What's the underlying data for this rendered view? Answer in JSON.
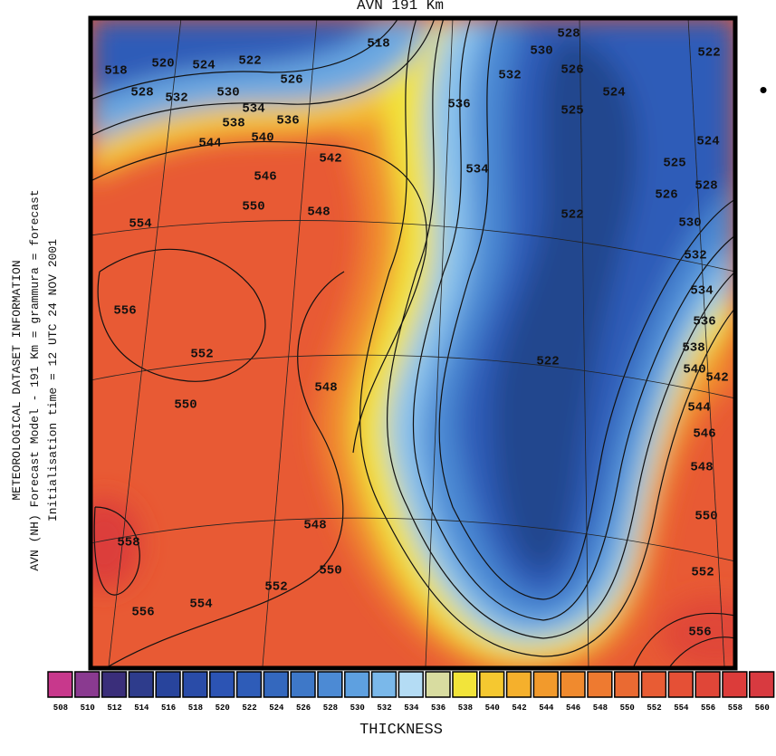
{
  "title": "AVN 191 Km",
  "side_info": [
    "METEOROLOGICAL DATASET INFORMATION",
    "AVN (NH) Forecast Model - 191 Km = grammura = forecast",
    "Initialisation time = 12 UTC 24 NOV 2001"
  ],
  "bullet": "•",
  "contour_labels": [
    518,
    520,
    524,
    522,
    518,
    526,
    528,
    532,
    530,
    534,
    536,
    538,
    540,
    544,
    542,
    546,
    550,
    548,
    554,
    556,
    552,
    550,
    548,
    548,
    558,
    550,
    552,
    554,
    556,
    536,
    530,
    528,
    532,
    526,
    524,
    525,
    534,
    522,
    522,
    522,
    524,
    525,
    526,
    528,
    530,
    532,
    534,
    536,
    538,
    540,
    542,
    544,
    546,
    548,
    550,
    552,
    556
  ],
  "colorbar": {
    "label": "THICKNESS",
    "values": [
      508,
      510,
      512,
      514,
      516,
      518,
      520,
      522,
      524,
      526,
      528,
      530,
      532,
      534,
      536,
      538,
      540,
      542,
      544,
      546,
      548,
      550,
      552,
      554,
      556,
      558,
      560
    ],
    "colors": [
      "#c8388c",
      "#8a3a90",
      "#3a2e7a",
      "#2e3c8c",
      "#28449c",
      "#2a4ca8",
      "#2c54b4",
      "#2e5cb8",
      "#3468be",
      "#3e78c8",
      "#4c8ad4",
      "#5ea0e0",
      "#7ab8ea",
      "#b4dcf4",
      "#d8dca0",
      "#f2e43a",
      "#f5c830",
      "#f5b02c",
      "#f29a2c",
      "#f08a2e",
      "#ee7a30",
      "#ea6a32",
      "#e85c34",
      "#e55036",
      "#e04638",
      "#dc3c3a",
      "#d83a40"
    ]
  }
}
